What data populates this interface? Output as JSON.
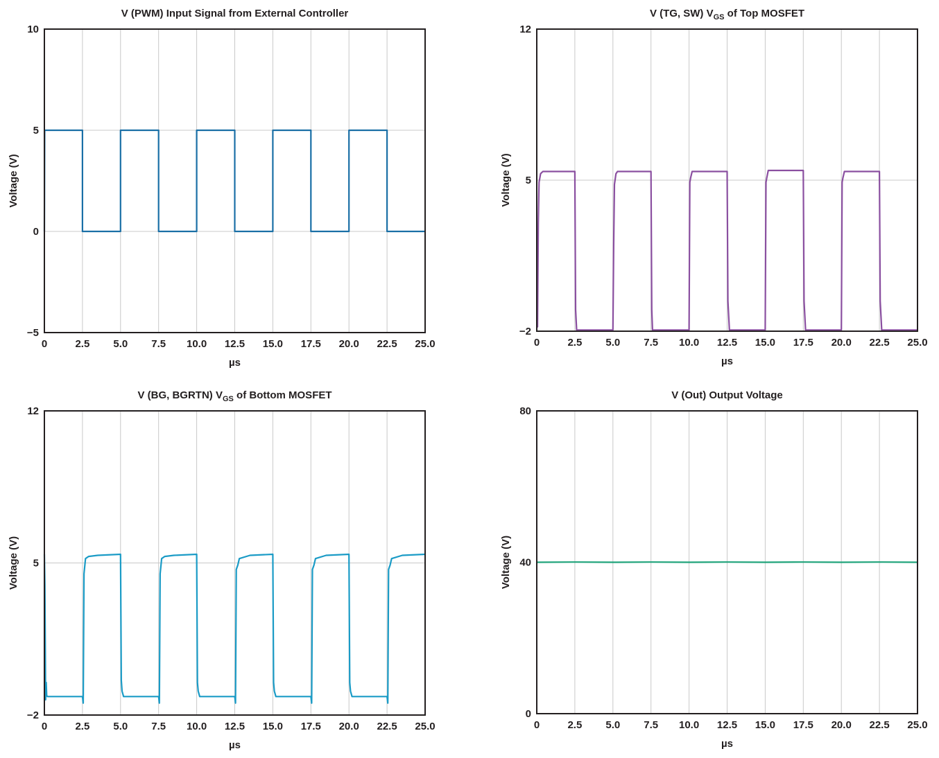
{
  "chart_data": [
    {
      "type": "line",
      "title": "V (PWM) Input Signal from External Controller",
      "title_sub": "",
      "title_tail": "",
      "xlabel": "µs",
      "ylabel": "Voltage (V)",
      "xlim": [
        0,
        25
      ],
      "ylim": [
        -5,
        10
      ],
      "x_ticks": [
        0,
        2.5,
        5,
        7.5,
        10,
        12.5,
        15,
        17.5,
        20,
        22.5,
        25
      ],
      "x_tick_labels": [
        "0",
        "2.5",
        "5.0",
        "7.5",
        "10.0",
        "12.5",
        "15.0",
        "17.5",
        "20.0",
        "22.5",
        "25.0"
      ],
      "y_ticks": [
        -5,
        0,
        5,
        10
      ],
      "y_tick_labels": [
        "−5",
        "0",
        "5",
        "10"
      ],
      "grid": true,
      "color": "#1a6fa6",
      "series": [
        {
          "x": [
            0,
            0.02,
            2.5,
            2.5,
            5,
            5,
            7.5,
            7.5,
            10,
            10,
            12.5,
            12.5,
            15,
            15,
            17.5,
            17.5,
            20,
            20,
            22.5,
            22.5,
            25
          ],
          "y": [
            0,
            5,
            5,
            0,
            0,
            5,
            5,
            0,
            0,
            5,
            5,
            0,
            0,
            5,
            5,
            0,
            0,
            5,
            5,
            0,
            0
          ]
        }
      ]
    },
    {
      "type": "line",
      "title": "V (TG, SW) V",
      "title_sub": "GS",
      "title_tail": " of Top MOSFET",
      "xlabel": "µs",
      "ylabel": "Voltage (V)",
      "xlim": [
        0,
        25
      ],
      "ylim": [
        -2,
        12
      ],
      "x_ticks": [
        0,
        2.5,
        5,
        7.5,
        10,
        12.5,
        15,
        17.5,
        20,
        22.5,
        25
      ],
      "x_tick_labels": [
        "0",
        "2.5",
        "5.0",
        "7.5",
        "10.0",
        "12.5",
        "15.0",
        "17.5",
        "20.0",
        "22.5",
        "25.0"
      ],
      "y_ticks": [
        -2,
        5,
        12
      ],
      "y_tick_labels": [
        "−2",
        "5",
        "12"
      ],
      "grid": true,
      "color": "#8a4fa0",
      "series": [
        {
          "x": [
            0,
            0.05,
            0.1,
            0.15,
            0.25,
            0.4,
            2.5,
            2.55,
            2.62,
            5.0,
            5.05,
            5.1,
            5.2,
            5.3,
            7.5,
            7.55,
            7.6,
            10.0,
            10.05,
            10.1,
            10.2,
            12.5,
            12.55,
            12.65,
            15.0,
            15.05,
            15.1,
            15.2,
            17.5,
            17.55,
            17.65,
            20.0,
            20.05,
            20.1,
            20.2,
            22.5,
            22.55,
            22.65,
            25.0
          ],
          "y": [
            -1.5,
            -1.8,
            3,
            4.9,
            5.3,
            5.4,
            5.4,
            -1.0,
            -1.95,
            -1.95,
            2.0,
            4.8,
            5.3,
            5.4,
            5.4,
            -1.0,
            -1.95,
            -1.95,
            4.9,
            5.1,
            5.4,
            5.4,
            -0.6,
            -1.95,
            -1.95,
            4.9,
            5.1,
            5.45,
            5.45,
            -0.6,
            -1.95,
            -1.95,
            4.9,
            5.1,
            5.4,
            5.4,
            -0.6,
            -1.95,
            -1.95
          ]
        }
      ]
    },
    {
      "type": "line",
      "title": "V (BG, BGRTN) V",
      "title_sub": "GS",
      "title_tail": " of Bottom MOSFET",
      "xlabel": "µs",
      "ylabel": "Voltage (V)",
      "xlim": [
        0,
        25
      ],
      "ylim": [
        -2,
        12
      ],
      "x_ticks": [
        0,
        2.5,
        5,
        7.5,
        10,
        12.5,
        15,
        17.5,
        20,
        22.5,
        25
      ],
      "x_tick_labels": [
        "0",
        "2.5",
        "5.0",
        "7.5",
        "10.0",
        "12.5",
        "15.0",
        "17.5",
        "20.0",
        "22.5",
        "25.0"
      ],
      "y_ticks": [
        -2,
        5,
        12
      ],
      "y_tick_labels": [
        "−2",
        "5",
        "12"
      ],
      "grid": true,
      "color": "#1a9bc6",
      "series": [
        {
          "x": [
            0,
            0.03,
            0.08,
            0.12,
            0.15,
            0.2,
            2.5,
            2.55,
            2.6,
            2.7,
            2.9,
            3.5,
            5.0,
            5.05,
            5.1,
            5.2,
            7.5,
            7.55,
            7.6,
            7.7,
            7.9,
            8.5,
            10.0,
            10.05,
            10.1,
            10.2,
            12.5,
            12.55,
            12.6,
            12.7,
            12.8,
            13.5,
            15.0,
            15.05,
            15.1,
            15.2,
            17.5,
            17.55,
            17.6,
            17.7,
            17.8,
            18.5,
            20.0,
            20.05,
            20.1,
            20.2,
            22.5,
            22.55,
            22.6,
            22.7,
            22.8,
            23.5,
            25.0
          ],
          "y": [
            5.4,
            4.0,
            -1.3,
            -0.5,
            -1.1,
            -1.15,
            -1.15,
            -1.45,
            4.5,
            5.2,
            5.3,
            5.35,
            5.4,
            -0.4,
            -0.9,
            -1.15,
            -1.15,
            -1.45,
            4.5,
            5.2,
            5.3,
            5.35,
            5.4,
            -0.5,
            -0.9,
            -1.15,
            -1.15,
            -1.45,
            4.7,
            4.9,
            5.2,
            5.35,
            5.4,
            -0.5,
            -0.9,
            -1.15,
            -1.15,
            -1.45,
            4.7,
            4.9,
            5.2,
            5.35,
            5.4,
            -0.5,
            -0.9,
            -1.15,
            -1.15,
            -1.45,
            4.7,
            4.9,
            5.2,
            5.35,
            5.4
          ]
        }
      ]
    },
    {
      "type": "line",
      "title": "V (Out) Output Voltage",
      "title_sub": "",
      "title_tail": "",
      "xlabel": "µs",
      "ylabel": "Voltage (V)",
      "xlim": [
        0,
        25
      ],
      "ylim": [
        0,
        80
      ],
      "x_ticks": [
        0,
        2.5,
        5,
        7.5,
        10,
        12.5,
        15,
        17.5,
        20,
        22.5,
        25
      ],
      "x_tick_labels": [
        "0",
        "2.5",
        "5.0",
        "7.5",
        "10.0",
        "12.5",
        "15.0",
        "17.5",
        "20.0",
        "22.5",
        "25.0"
      ],
      "y_ticks": [
        0,
        40,
        80
      ],
      "y_tick_labels": [
        "0",
        "40",
        "80"
      ],
      "grid": true,
      "color": "#1fa37a",
      "series": [
        {
          "x": [
            0,
            2.5,
            5,
            7.5,
            10,
            12.5,
            15,
            17.5,
            20,
            22.5,
            25
          ],
          "y": [
            40,
            40.05,
            40,
            40.05,
            40,
            40.05,
            40,
            40.05,
            40,
            40.05,
            40
          ]
        }
      ]
    }
  ]
}
